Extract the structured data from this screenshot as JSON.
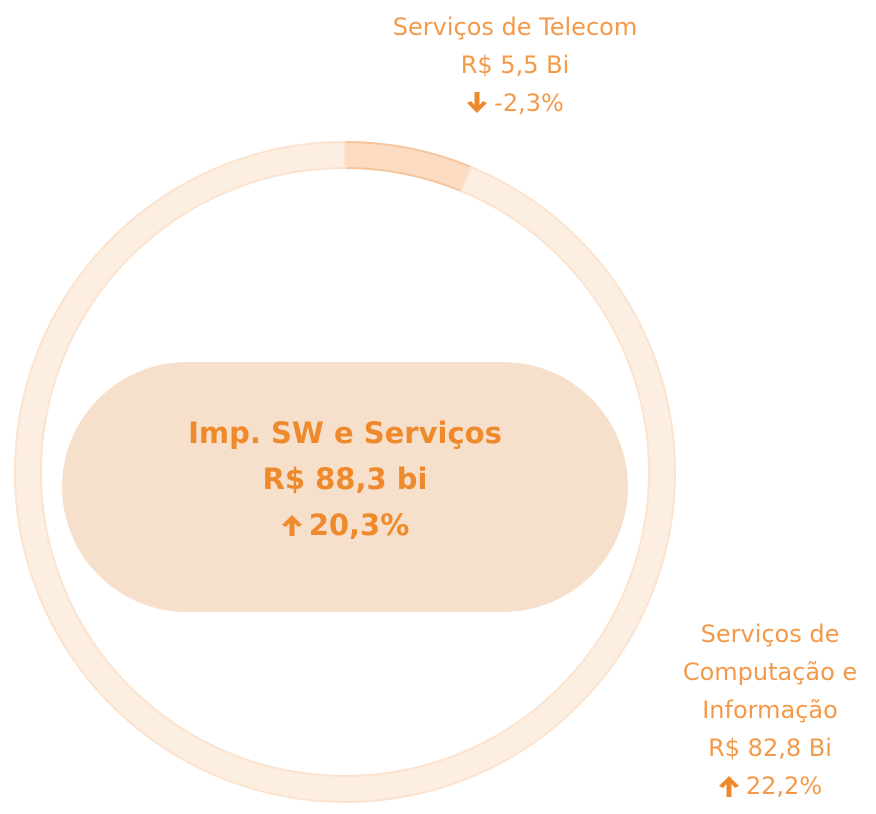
{
  "chart_data": {
    "type": "donut",
    "center_title": "Imp. SW e Serviços",
    "total": 88.3,
    "total_label": "R$ 88,3 bi",
    "total_change": 20.3,
    "total_change_label": "20,3%",
    "categories": [
      "Serviços de Telecom",
      "Serviços de Computação e Informação"
    ],
    "values": [
      5.5,
      82.8
    ],
    "value_labels": [
      "R$ 5,5 Bi",
      "R$ 82,8 Bi"
    ],
    "changes": [
      -2.3,
      22.2
    ],
    "change_labels": [
      "-2,3%",
      "22,2%"
    ],
    "colors": [
      "#fbdcc3",
      "#fdeee2"
    ]
  }
}
